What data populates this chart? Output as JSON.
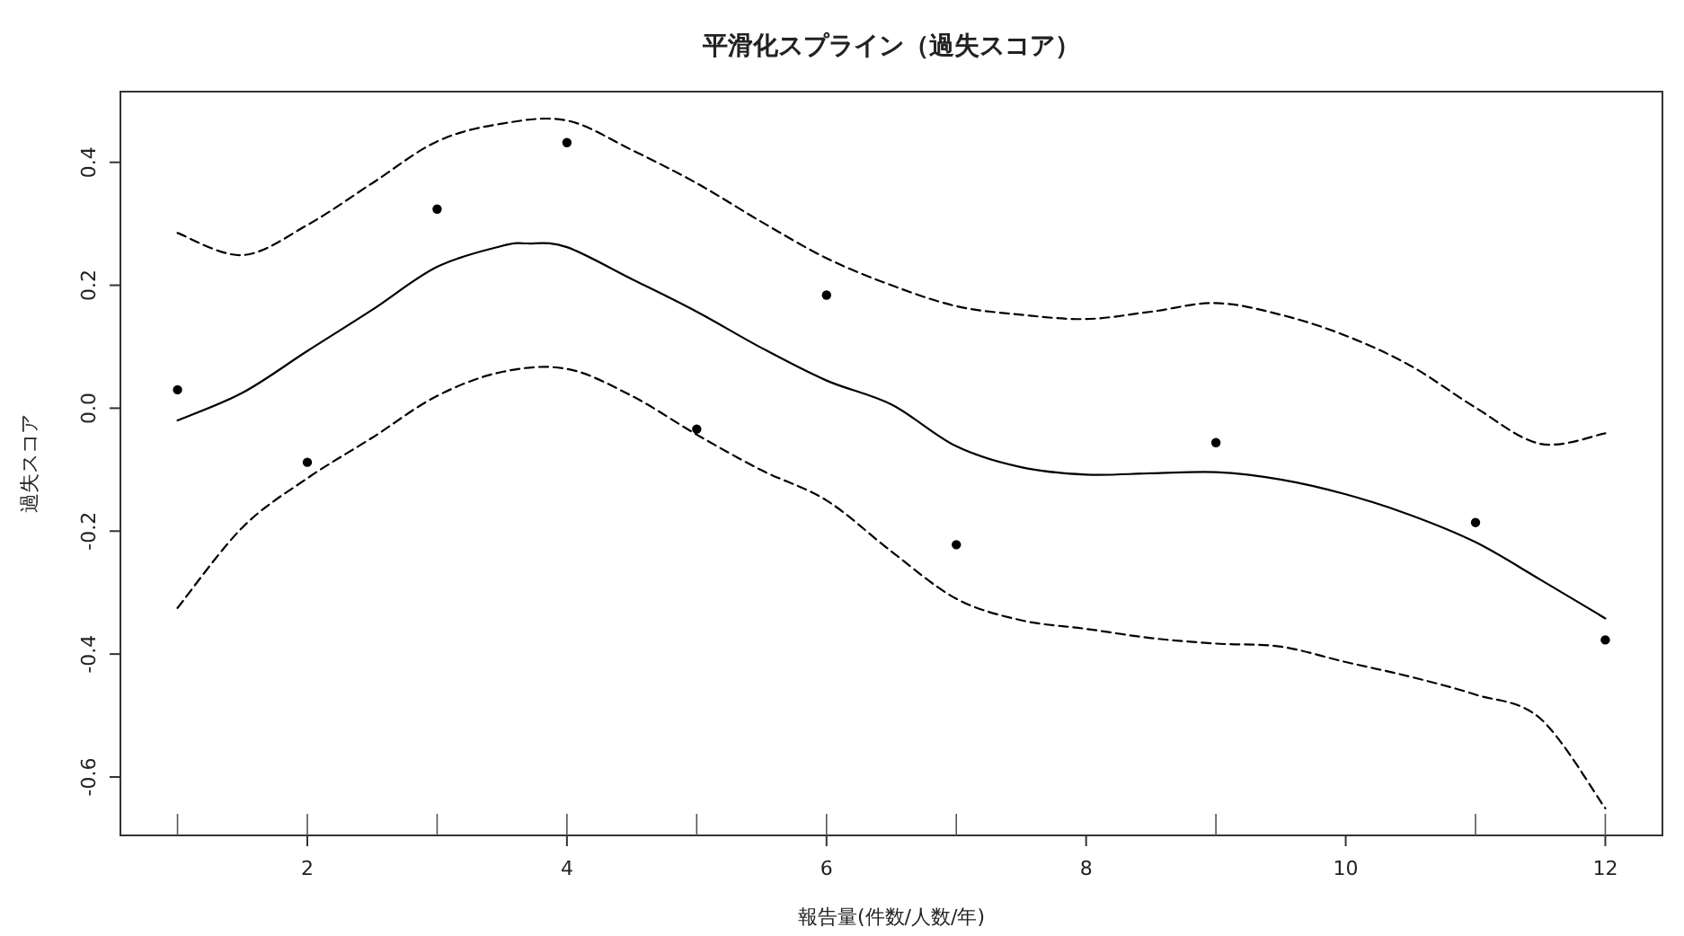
{
  "chart_data": {
    "type": "line",
    "title": "平滑化スプライン（過失スコア）",
    "xlabel": "報告量(件数/人数/年)",
    "ylabel": "過失スコア",
    "xlim": [
      0.56,
      12.44
    ],
    "ylim": [
      -0.695,
      0.515
    ],
    "xticks": [
      2,
      4,
      6,
      8,
      10,
      12
    ],
    "yticks": [
      -0.6,
      -0.4,
      -0.2,
      {
        "value": 0,
        "label": "0.0"
      },
      0.2,
      0.4
    ],
    "grid": false,
    "series": [
      {
        "color": "#000000",
        "line_style": "solid",
        "x": [
          1,
          1.5,
          2,
          2.5,
          3,
          3.5,
          3.7,
          4,
          4.5,
          5,
          5.5,
          6,
          6.5,
          7,
          7.5,
          8,
          8.5,
          9,
          9.5,
          10,
          10.5,
          11,
          11.5,
          12
        ],
        "values": [
          -0.02,
          0.025,
          0.093,
          0.16,
          0.23,
          0.264,
          0.268,
          0.262,
          0.21,
          0.157,
          0.098,
          0.045,
          0.006,
          -0.062,
          -0.096,
          -0.108,
          -0.106,
          -0.104,
          -0.116,
          -0.14,
          -0.174,
          -0.218,
          -0.279,
          -0.342
        ]
      },
      {
        "color": "#000000",
        "line_style": "dashed",
        "x": [
          1,
          1.5,
          2,
          2.5,
          3,
          3.5,
          4,
          4.5,
          5,
          5.5,
          6,
          6.5,
          7,
          7.5,
          8,
          8.5,
          9,
          9.5,
          10,
          10.5,
          11,
          11.5,
          12
        ],
        "values": [
          0.285,
          0.249,
          0.298,
          0.366,
          0.434,
          0.463,
          0.468,
          0.42,
          0.366,
          0.303,
          0.244,
          0.2,
          0.166,
          0.152,
          0.145,
          0.157,
          0.171,
          0.152,
          0.118,
          0.069,
          0.001,
          -0.058,
          -0.041
        ]
      },
      {
        "color": "#000000",
        "line_style": "dashed",
        "x": [
          1,
          1.5,
          2,
          2.5,
          3,
          3.5,
          4,
          4.5,
          5,
          5.5,
          6,
          6.5,
          7,
          7.5,
          8,
          8.5,
          9,
          9.5,
          10,
          10.5,
          11,
          11.5,
          12
        ],
        "values": [
          -0.325,
          -0.194,
          -0.114,
          -0.048,
          0.02,
          0.059,
          0.064,
          0.02,
          -0.043,
          -0.101,
          -0.15,
          -0.233,
          -0.31,
          -0.345,
          -0.359,
          -0.374,
          -0.383,
          -0.388,
          -0.413,
          -0.437,
          -0.466,
          -0.505,
          -0.651
        ]
      },
      {
        "type": "scatter",
        "color": "#000000",
        "marker": "circle",
        "x": [
          1,
          2,
          3,
          4,
          5,
          6,
          7,
          9,
          11,
          12
        ],
        "values": [
          0.03,
          -0.088,
          0.324,
          0.432,
          -0.034,
          0.184,
          -0.222,
          -0.056,
          -0.186,
          -0.377
        ]
      }
    ]
  }
}
